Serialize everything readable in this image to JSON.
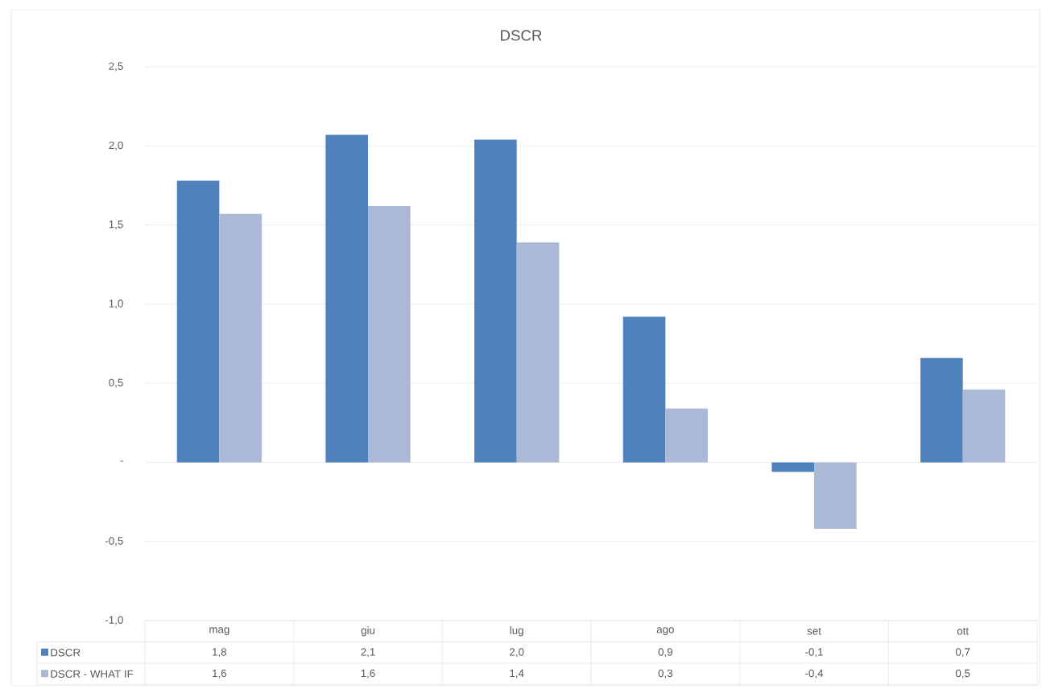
{
  "chart_data": {
    "type": "bar",
    "title": "DSCR",
    "categories": [
      "mag",
      "giu",
      "lug",
      "ago",
      "set",
      "ott"
    ],
    "series": [
      {
        "name": "DSCR",
        "color": "#4f81bd",
        "values": [
          1.78,
          2.07,
          2.04,
          0.92,
          -0.06,
          0.66
        ],
        "value_labels": [
          "1,8",
          "2,1",
          "2,0",
          "0,9",
          "-0,1",
          "0,7"
        ]
      },
      {
        "name": "DSCR - WHAT IF",
        "color": "#abb9d7",
        "values": [
          1.57,
          1.62,
          1.39,
          0.34,
          -0.42,
          0.46
        ],
        "value_labels": [
          "1,6",
          "1,6",
          "1,4",
          "0,3",
          "-0,4",
          "0,5"
        ]
      }
    ],
    "ylim": [
      -1.0,
      2.5
    ],
    "yticks": [
      {
        "value": -1.0,
        "label": "-1,0"
      },
      {
        "value": -0.5,
        "label": "-0,5"
      },
      {
        "value": 0,
        "label": "-"
      },
      {
        "value": 0.5,
        "label": "0,5"
      },
      {
        "value": 1.0,
        "label": "1,0"
      },
      {
        "value": 1.5,
        "label": "1,5"
      },
      {
        "value": 2.0,
        "label": "2,0"
      },
      {
        "value": 2.5,
        "label": "2,5"
      }
    ],
    "grid": "y",
    "legend": "bottom"
  }
}
